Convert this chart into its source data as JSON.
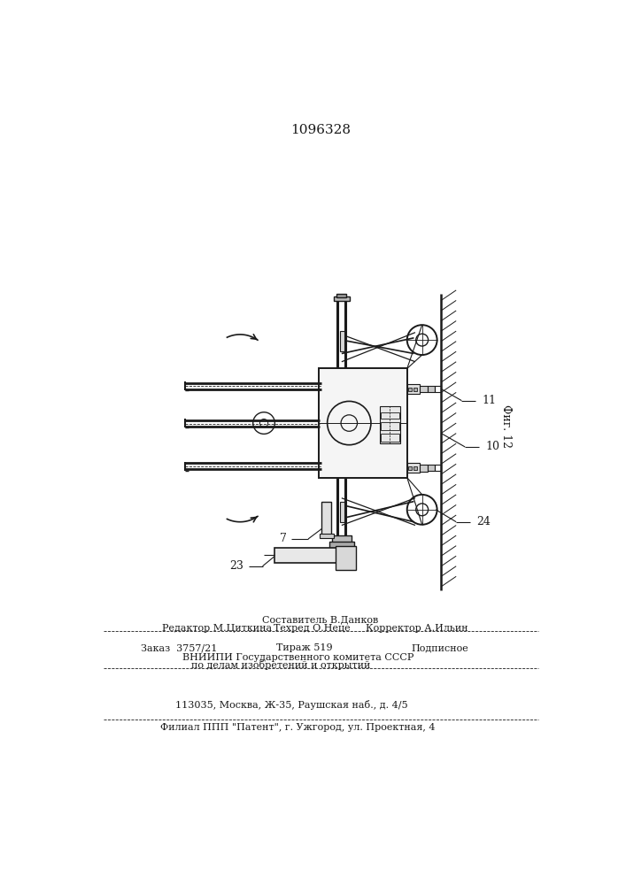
{
  "title": "1096328",
  "fig_label": "Фиг. 12",
  "bg_color": "#ffffff",
  "line_color": "#1a1a1a",
  "label_7": "7",
  "label_10": "10",
  "label_11": "11",
  "label_23": "23",
  "label_24": "24",
  "footer_editor": "Редактор М.Циткина",
  "footer_compiler": "Составитель В.Данков",
  "footer_techred": "Техред О.Неце",
  "footer_corrector": "Корректор А.Ильин",
  "footer_order": "Заказ  3757/21",
  "footer_print": "Тираж 519",
  "footer_subscription": "Подписное",
  "footer_org1": "ВНИИПИ Государственного комитета СССР",
  "footer_org2": "по делам изобретений и открытий",
  "footer_org3": "113035, Москва, Ж-35, Раушская наб., д. 4/5",
  "footer_branch": "Филиал ППП \"Патент\", г. Ужгород, ул. Проектная, 4"
}
